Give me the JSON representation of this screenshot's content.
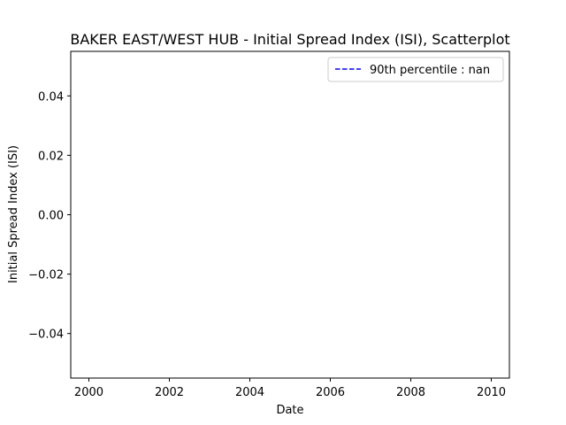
{
  "chart_data": {
    "type": "scatter",
    "title": "BAKER EAST/WEST HUB - Initial Spread Index (ISI), Scatterplot",
    "xlabel": "Date",
    "ylabel": "Initial Spread Index (ISI)",
    "xlim": [
      1999.55,
      2010.45
    ],
    "ylim": [
      -0.055,
      0.055
    ],
    "xticks": [
      2000,
      2002,
      2004,
      2006,
      2008,
      2010
    ],
    "xtick_labels": [
      "2000",
      "2002",
      "2004",
      "2006",
      "2008",
      "2010"
    ],
    "yticks": [
      0.04,
      0.02,
      0.0,
      -0.02,
      -0.04
    ],
    "ytick_labels": [
      "0.04",
      "0.02",
      "0.00",
      "−0.02",
      "−0.04"
    ],
    "grid": false,
    "series": [
      {
        "name": "90th percentile : nan",
        "style": "dashed-line",
        "color": "#0000ff",
        "values": []
      }
    ],
    "points": [],
    "legend": {
      "placement": "top-right",
      "entries": [
        "90th percentile : nan"
      ]
    }
  }
}
